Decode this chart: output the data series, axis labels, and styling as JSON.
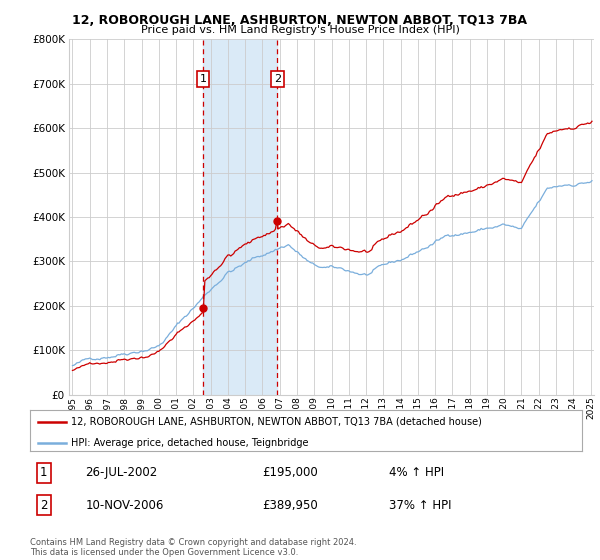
{
  "title": "12, ROBOROUGH LANE, ASHBURTON, NEWTON ABBOT, TQ13 7BA",
  "subtitle": "Price paid vs. HM Land Registry's House Price Index (HPI)",
  "legend_line1": "12, ROBOROUGH LANE, ASHBURTON, NEWTON ABBOT, TQ13 7BA (detached house)",
  "legend_line2": "HPI: Average price, detached house, Teignbridge",
  "transaction1_date": "26-JUL-2002",
  "transaction1_price": "£195,000",
  "transaction1_hpi": "4% ↑ HPI",
  "transaction2_date": "10-NOV-2006",
  "transaction2_price": "£389,950",
  "transaction2_hpi": "37% ↑ HPI",
  "footnote": "Contains HM Land Registry data © Crown copyright and database right 2024.\nThis data is licensed under the Open Government Licence v3.0.",
  "ylim": [
    0,
    800000
  ],
  "yticks": [
    0,
    100000,
    200000,
    300000,
    400000,
    500000,
    600000,
    700000,
    800000
  ],
  "red_color": "#cc0000",
  "blue_color": "#7aaedc",
  "shade_color": "#daeaf7",
  "background_color": "#ffffff",
  "grid_color": "#cccccc",
  "transaction1_x": 2002.57,
  "transaction2_x": 2006.86,
  "start_year": 1995,
  "end_year": 2025
}
